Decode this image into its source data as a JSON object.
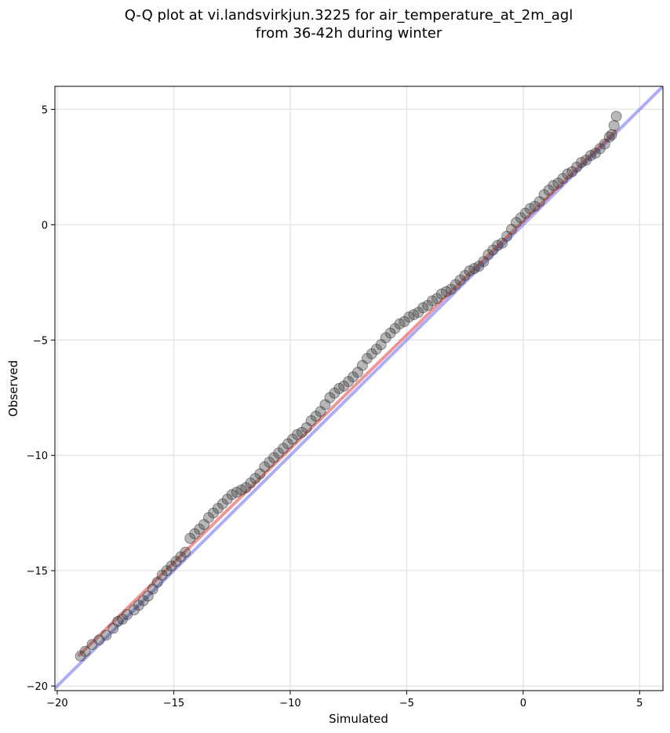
{
  "chart_data": {
    "type": "scatter",
    "title": "Q-Q plot at vi.landsvirkjun.3225 for air_temperature_at_2m_agl\nfrom 36-42h during winter",
    "xlabel": "Simulated",
    "ylabel": "Observed",
    "xlim": [
      -20.1,
      6.0
    ],
    "ylim": [
      -20.2,
      6.0
    ],
    "xticks": [
      -20,
      -15,
      -10,
      -5,
      0,
      5
    ],
    "xtick_labels": [
      "−20",
      "−15",
      "−10",
      "−5",
      "0",
      "5"
    ],
    "yticks": [
      5,
      0,
      -5,
      -10,
      -15,
      -20
    ],
    "ytick_labels": [
      "5",
      "0",
      "−5",
      "−10",
      "−15",
      "−20"
    ],
    "grid": true,
    "legend": "none",
    "colors": {
      "points": "#333333",
      "identity_line": "#7777ee",
      "fit_line": "#e05050",
      "grid": "#e6e6e6"
    },
    "reference_lines": [
      {
        "kind": "identity",
        "x": [
          -20.1,
          6.0
        ],
        "y": [
          -20.1,
          6.0
        ]
      },
      {
        "kind": "fit",
        "x": [
          -19.1,
          4.0
        ],
        "y": [
          -18.7,
          4.1
        ]
      }
    ],
    "points": {
      "x": [
        -19.0,
        -18.8,
        -18.5,
        -18.2,
        -17.9,
        -17.6,
        -17.4,
        -17.2,
        -17.0,
        -16.7,
        -16.5,
        -16.3,
        -16.1,
        -15.9,
        -15.7,
        -15.5,
        -15.3,
        -15.1,
        -14.9,
        -14.7,
        -14.5,
        -14.3,
        -14.1,
        -13.9,
        -13.7,
        -13.5,
        -13.3,
        -13.1,
        -12.9,
        -12.7,
        -12.5,
        -12.3,
        -12.1,
        -11.9,
        -11.7,
        -11.5,
        -11.3,
        -11.1,
        -10.9,
        -10.7,
        -10.5,
        -10.3,
        -10.1,
        -9.9,
        -9.7,
        -9.5,
        -9.3,
        -9.1,
        -8.9,
        -8.7,
        -8.5,
        -8.3,
        -8.1,
        -7.9,
        -7.7,
        -7.5,
        -7.3,
        -7.1,
        -6.9,
        -6.7,
        -6.5,
        -6.3,
        -6.1,
        -5.9,
        -5.7,
        -5.5,
        -5.3,
        -5.1,
        -4.9,
        -4.7,
        -4.5,
        -4.3,
        -4.1,
        -3.9,
        -3.7,
        -3.5,
        -3.3,
        -3.1,
        -2.9,
        -2.7,
        -2.5,
        -2.3,
        -2.1,
        -1.9,
        -1.7,
        -1.5,
        -1.3,
        -1.1,
        -0.9,
        -0.7,
        -0.5,
        -0.3,
        -0.1,
        0.1,
        0.3,
        0.5,
        0.7,
        0.9,
        1.1,
        1.3,
        1.5,
        1.7,
        1.9,
        2.1,
        2.3,
        2.5,
        2.7,
        2.9,
        3.1,
        3.3,
        3.5,
        3.7,
        3.8,
        3.9,
        4.0
      ],
      "y": [
        -18.7,
        -18.5,
        -18.2,
        -18.0,
        -17.8,
        -17.5,
        -17.2,
        -17.1,
        -16.9,
        -16.7,
        -16.5,
        -16.3,
        -16.1,
        -15.8,
        -15.5,
        -15.2,
        -15.0,
        -14.8,
        -14.6,
        -14.4,
        -14.2,
        -13.6,
        -13.4,
        -13.2,
        -13.0,
        -12.7,
        -12.5,
        -12.3,
        -12.1,
        -11.9,
        -11.7,
        -11.6,
        -11.5,
        -11.4,
        -11.2,
        -11.0,
        -10.8,
        -10.5,
        -10.3,
        -10.1,
        -9.9,
        -9.7,
        -9.5,
        -9.3,
        -9.1,
        -9.0,
        -8.8,
        -8.5,
        -8.3,
        -8.1,
        -7.8,
        -7.5,
        -7.3,
        -7.1,
        -7.0,
        -6.8,
        -6.6,
        -6.4,
        -6.1,
        -5.8,
        -5.6,
        -5.4,
        -5.2,
        -4.9,
        -4.7,
        -4.5,
        -4.3,
        -4.2,
        -4.0,
        -3.9,
        -3.8,
        -3.6,
        -3.5,
        -3.3,
        -3.2,
        -3.0,
        -2.9,
        -2.8,
        -2.6,
        -2.4,
        -2.2,
        -2.0,
        -1.9,
        -1.8,
        -1.6,
        -1.3,
        -1.1,
        -0.9,
        -0.8,
        -0.5,
        -0.2,
        0.1,
        0.3,
        0.5,
        0.7,
        0.8,
        1.0,
        1.3,
        1.5,
        1.7,
        1.8,
        2.0,
        2.2,
        2.3,
        2.5,
        2.7,
        2.8,
        3.0,
        3.1,
        3.3,
        3.5,
        3.8,
        3.9,
        4.3,
        4.7
      ]
    }
  }
}
